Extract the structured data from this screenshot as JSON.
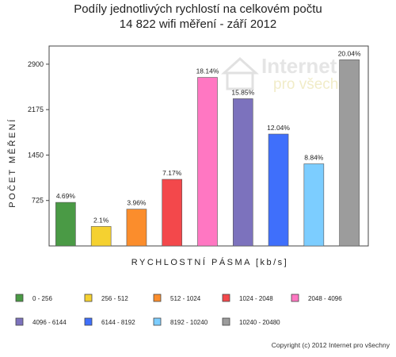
{
  "title_line1": "Podíly jednotlivých rychlostí na celkovém počtu",
  "title_line2": "14 822 wifi měření - září 2012",
  "watermark": {
    "brand": "Internet",
    "tagline": "pro všechny"
  },
  "copyright": "Copyright (c) 2012 Internet pro všechny",
  "chart_data": {
    "type": "bar",
    "xlabel": "RYCHLOSTNÍ PÁSMA [kb/s]",
    "ylabel": "POČET MĚŘENÍ",
    "ylim": [
      0,
      3190
    ],
    "yticks": [
      725,
      1450,
      2175,
      2900
    ],
    "grid": false,
    "legend_position": "bottom",
    "categories": [
      "0 - 256",
      "256 - 512",
      "512 - 1024",
      "1024 - 2048",
      "2048 - 4096",
      "4096 - 6144",
      "6144 - 8192",
      "8192 - 10240",
      "10240 - 20480"
    ],
    "values": [
      695,
      311,
      587,
      1063,
      2689,
      2349,
      1785,
      1310,
      2970
    ],
    "labels": [
      "4.69%",
      "2.1%",
      "3.96%",
      "7.17%",
      "18.14%",
      "15.85%",
      "12.04%",
      "8.84%",
      "20.04%"
    ],
    "colors": [
      "#4a9a45",
      "#f5d130",
      "#fb8d2c",
      "#f3484b",
      "#ff77c2",
      "#7c72bd",
      "#3f6ffb",
      "#7ccdff",
      "#9c9c9c"
    ]
  }
}
